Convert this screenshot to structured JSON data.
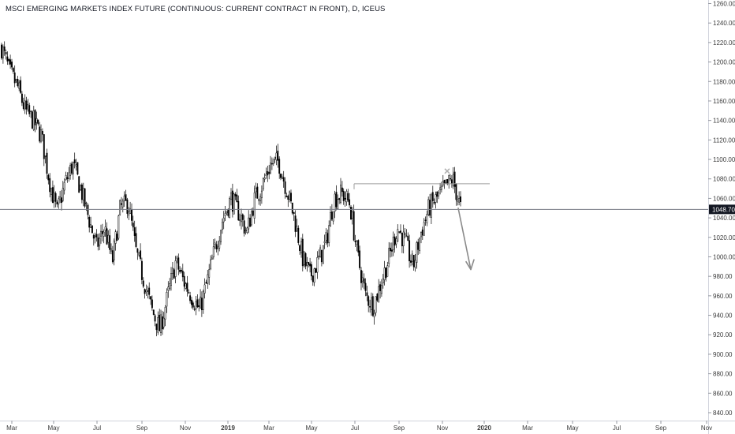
{
  "header": {
    "title": "MSCI EMERGING MARKETS INDEX FUTURE (CONTINUOUS: CURRENT CONTRACT IN FRONT), D, ICEUS"
  },
  "chart_data": {
    "type": "candlestick",
    "title": "MSCI EMERGING MARKETS INDEX FUTURE (CONTINUOUS: CURRENT CONTRACT IN FRONT), D, ICEUS",
    "y_ticks": [
      840,
      860,
      880,
      900,
      920,
      940,
      960,
      980,
      1000,
      1020,
      1040,
      1060,
      1080,
      1100,
      1120,
      1140,
      1160,
      1180,
      1200,
      1220,
      1240,
      1260
    ],
    "y_tick_labels": [
      "840.00",
      "860.00",
      "880.00",
      "900.00",
      "920.00",
      "940.00",
      "960.00",
      "980.00",
      "1000.00",
      "1020.00",
      "1040.00",
      "1060.00",
      "1080.00",
      "1100.00",
      "1120.00",
      "1140.00",
      "1160.00",
      "1180.00",
      "1200.00",
      "1220.00",
      "1240.00",
      "1260.00"
    ],
    "ylim": [
      834,
      1264
    ],
    "x_ticks": [
      {
        "label": "Mar",
        "bold": false
      },
      {
        "label": "May",
        "bold": false
      },
      {
        "label": "Jul",
        "bold": false
      },
      {
        "label": "Sep",
        "bold": false
      },
      {
        "label": "Nov",
        "bold": false
      },
      {
        "label": "2019",
        "bold": true
      },
      {
        "label": "Mar",
        "bold": false
      },
      {
        "label": "May",
        "bold": false
      },
      {
        "label": "Jul",
        "bold": false
      },
      {
        "label": "Sep",
        "bold": false
      },
      {
        "label": "Nov",
        "bold": false
      },
      {
        "label": "2020",
        "bold": true
      },
      {
        "label": "Mar",
        "bold": false
      },
      {
        "label": "May",
        "bold": false
      },
      {
        "label": "Jul",
        "bold": false
      },
      {
        "label": "Sep",
        "bold": false
      },
      {
        "label": "Nov",
        "bold": false
      }
    ],
    "current_price": 1048.7,
    "current_price_label": "1048.70",
    "resistance_level": 1075,
    "close_path": [
      [
        "Feb",
        1215
      ],
      [
        "Mar",
        1190
      ],
      [
        "Apr",
        1175
      ],
      [
        "Apr",
        1150
      ],
      [
        "May",
        1140
      ],
      [
        "May",
        1125
      ],
      [
        "Jun",
        1080
      ],
      [
        "Jun",
        1045
      ],
      [
        "Jul",
        1075
      ],
      [
        "Jul",
        1095
      ],
      [
        "Aug",
        1070
      ],
      [
        "Aug",
        1040
      ],
      [
        "Aug",
        1010
      ],
      [
        "Sep",
        1030
      ],
      [
        "Sep",
        995
      ],
      [
        "Oct",
        1050
      ],
      [
        "Oct",
        1055
      ],
      [
        "Oct",
        1005
      ],
      [
        "Oct",
        975
      ],
      [
        "Oct",
        945
      ],
      [
        "Nov",
        925
      ],
      [
        "Nov",
        960
      ],
      [
        "Nov",
        995
      ],
      [
        "Dec",
        975
      ],
      [
        "Dec",
        960
      ],
      [
        "Dec",
        945
      ],
      [
        "Jan",
        975
      ],
      [
        "Jan",
        1010
      ],
      [
        "Feb",
        1040
      ],
      [
        "Feb",
        1060
      ],
      [
        "Mar",
        1045
      ],
      [
        "Mar",
        1025
      ],
      [
        "Mar",
        1060
      ],
      [
        "Apr",
        1075
      ],
      [
        "Apr",
        1095
      ],
      [
        "Apr",
        1098
      ],
      [
        "May",
        1070
      ],
      [
        "May",
        1040
      ],
      [
        "May",
        1000
      ],
      [
        "Jun",
        980
      ],
      [
        "Jun",
        995
      ],
      [
        "Jun",
        1015
      ],
      [
        "Jul",
        1060
      ],
      [
        "Jul",
        1065
      ],
      [
        "Jul",
        1055
      ],
      [
        "Aug",
        1000
      ],
      [
        "Aug",
        960
      ],
      [
        "Aug",
        950
      ],
      [
        "Aug",
        975
      ],
      [
        "Sep",
        1000
      ],
      [
        "Sep",
        1030
      ],
      [
        "Sep",
        1015
      ],
      [
        "Oct",
        990
      ],
      [
        "Oct",
        1025
      ],
      [
        "Oct",
        1050
      ],
      [
        "Nov",
        1060
      ],
      [
        "Nov",
        1070
      ],
      [
        "Nov",
        1080
      ],
      [
        "Nov",
        1050
      ]
    ],
    "x_axis_labels_shown": true,
    "grid": false,
    "annotations": [
      {
        "type": "horizontal-line",
        "value": 1048.7
      },
      {
        "type": "resistance-segment",
        "value": 1075
      },
      {
        "type": "x-marker",
        "value": 1088
      },
      {
        "type": "down-arrow"
      }
    ]
  },
  "colors": {
    "candle": "#000000",
    "wick": "#000000",
    "price_line": "#787b86",
    "price_tag_bg": "#131722",
    "resistance_line": "#9e9e9e",
    "annotation": "#8a8a8a",
    "axis_text": "#3a3a3a",
    "background": "#ffffff"
  }
}
